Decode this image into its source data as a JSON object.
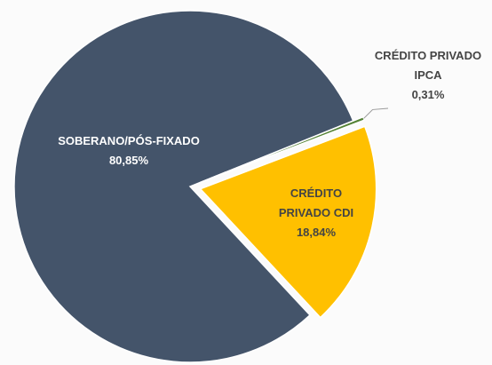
{
  "chart_data": {
    "type": "pie",
    "categories": [
      "SOBERANO/PÓS-FIXADO",
      "CRÉDITO PRIVADO IPCA",
      "CRÉDITO PRIVADO CDI"
    ],
    "values": [
      80.85,
      0.31,
      18.84
    ],
    "value_labels": [
      "80,85%",
      "0,31%",
      "18,84%"
    ],
    "colors": [
      "#44546a",
      "#548235",
      "#ffc000"
    ]
  }
}
